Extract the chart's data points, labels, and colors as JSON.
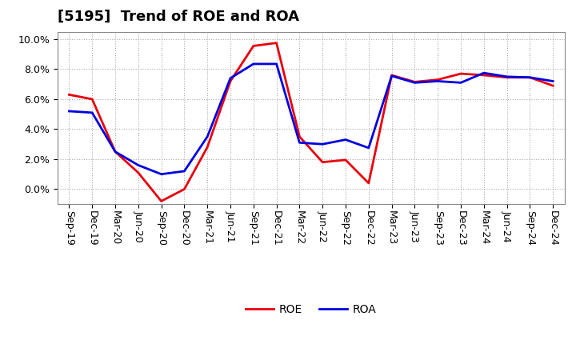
{
  "title": "[5195]  Trend of ROE and ROA",
  "x_labels": [
    "Sep-19",
    "Dec-19",
    "Mar-20",
    "Jun-20",
    "Sep-20",
    "Dec-20",
    "Mar-21",
    "Jun-21",
    "Sep-21",
    "Dec-21",
    "Mar-22",
    "Jun-22",
    "Sep-22",
    "Dec-22",
    "Mar-23",
    "Jun-23",
    "Sep-23",
    "Dec-23",
    "Mar-24",
    "Jun-24",
    "Sep-24",
    "Dec-24"
  ],
  "roe": [
    6.3,
    6.0,
    2.5,
    1.1,
    -0.8,
    0.0,
    2.8,
    7.2,
    9.55,
    9.75,
    3.5,
    1.8,
    1.95,
    0.4,
    7.6,
    7.15,
    7.3,
    7.7,
    7.6,
    7.45,
    7.45,
    6.9
  ],
  "roa": [
    5.2,
    5.1,
    2.5,
    1.6,
    1.0,
    1.2,
    3.5,
    7.4,
    8.35,
    8.35,
    3.1,
    3.0,
    3.3,
    2.75,
    7.55,
    7.1,
    7.2,
    7.1,
    7.75,
    7.5,
    7.45,
    7.2
  ],
  "roe_color": "#e8000d",
  "roa_color": "#0000e0",
  "background_color": "#ffffff",
  "grid_color": "#aaaaaa",
  "ylim": [
    -1.0,
    10.5
  ],
  "yticks": [
    0.0,
    2.0,
    4.0,
    6.0,
    8.0,
    10.0
  ],
  "linewidth": 2.0,
  "title_fontsize": 13,
  "legend_fontsize": 10,
  "tick_fontsize": 9
}
